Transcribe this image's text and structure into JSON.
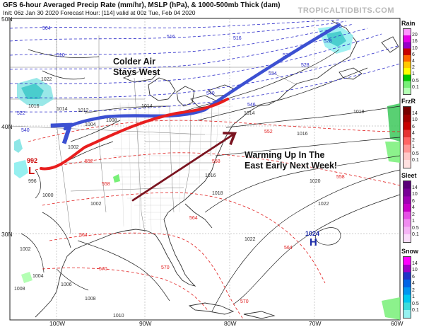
{
  "header": {
    "title": "GFS 6-hour Averaged Precip Rate (mm/hr), MSLP (hPa), & 1000-500mb Thick (dam)",
    "subtitle": "Init: 06z Jan 30 2020   Forecast Hour: [114]   valid at 00z Tue, Feb 04 2020",
    "brand": "TROPICALTIDBITS.COM"
  },
  "axes": {
    "lat_labels": [
      "50N",
      "40N",
      "30N"
    ],
    "lon_labels": [
      "100W",
      "90W",
      "80W",
      "70W",
      "60W"
    ]
  },
  "annotations": {
    "colder_air": [
      "Colder Air",
      "Stays West"
    ],
    "warming": [
      "Warming Up In The",
      "East Early Next Week!"
    ]
  },
  "pressure_centers": [
    {
      "type": "L",
      "value": "992",
      "color": "#cc0000"
    },
    {
      "type": "H",
      "value": "1024",
      "color": "#1a2aa8"
    }
  ],
  "isobar_labels": [
    "1024",
    "1022",
    "1020",
    "1018",
    "1016",
    "1014",
    "1012",
    "1010",
    "1008",
    "1006",
    "1004",
    "1002",
    "1000",
    "998",
    "996"
  ],
  "thickness_labels_blue": [
    "504",
    "510",
    "516",
    "522",
    "528",
    "534",
    "540",
    "546"
  ],
  "thickness_labels_red": [
    "552",
    "558",
    "564",
    "570"
  ],
  "legends": [
    {
      "title": "Rain",
      "ticks": [
        "20",
        "16",
        "10",
        "6",
        "4",
        "2",
        "1",
        "0.5",
        "0.1"
      ],
      "colors": [
        "#ff96ff",
        "#e600e6",
        "#9600c8",
        "#c80000",
        "#ff6400",
        "#ffc800",
        "#ffff00",
        "#00c800",
        "#78f078",
        "#b4ffb4"
      ]
    },
    {
      "title": "FrzR",
      "ticks": [
        "14",
        "10",
        "6",
        "4",
        "2",
        "1",
        "0.5",
        "0.1"
      ],
      "colors": [
        "#780000",
        "#a00000",
        "#c80000",
        "#e63232",
        "#ff6464",
        "#ff9696",
        "#ffc8c8",
        "#ffe1e1"
      ]
    },
    {
      "title": "Sleet",
      "ticks": [
        "14",
        "10",
        "6",
        "4",
        "2",
        "1",
        "0.5",
        "0.1"
      ],
      "colors": [
        "#5a0078",
        "#780096",
        "#a000b4",
        "#c800c8",
        "#e650e6",
        "#f08cf0",
        "#f5b4f5",
        "#fadcfa"
      ]
    },
    {
      "title": "Snow",
      "ticks": [
        "14",
        "10",
        "6",
        "4",
        "2",
        "1",
        "0.5",
        "0.1"
      ],
      "colors": [
        "#ff00ff",
        "#a000c8",
        "#1e32c8",
        "#0064e6",
        "#0096f0",
        "#00c8f0",
        "#3cdcdc",
        "#96f0f0"
      ]
    }
  ],
  "colors": {
    "blue_arrow": "#3c50d2",
    "red_front": "#e81e1e",
    "brown_arrow": "#7a1420",
    "thickness_cold": "#2828c8",
    "thickness_warm": "#e01e1e"
  }
}
